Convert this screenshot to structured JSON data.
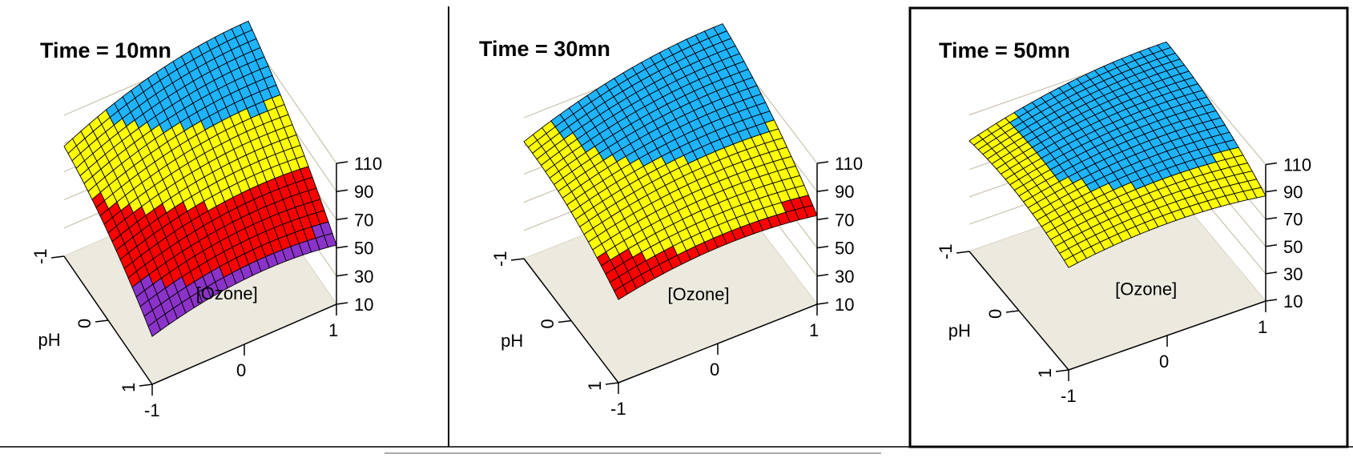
{
  "chart_data": [
    {
      "type": "surface",
      "title": "Time = 10mn",
      "xlabel": "[Ozone]",
      "ylabel": "pH",
      "x_ticks": [
        "-1",
        "0",
        "1"
      ],
      "y_ticks": [
        "-1",
        "0",
        "1"
      ],
      "z_ticks": [
        "10",
        "30",
        "50",
        "70",
        "90",
        "110"
      ],
      "xlim": [
        -1,
        1
      ],
      "ylim": [
        -1,
        1
      ],
      "zlim": [
        10,
        110
      ],
      "surface": {
        "c": 90,
        "a": 10,
        "b": 28,
        "ab": 6,
        "aa": -8,
        "bb": -6
      },
      "contour_levels": [
        40,
        60,
        80,
        100
      ],
      "band_colors": [
        "#ff0000",
        "#8b33c9",
        "#ff0000",
        "#ffff00",
        "#1eb4ff"
      ]
    },
    {
      "type": "surface",
      "title": "Time = 30mn",
      "xlabel": "[Ozone]",
      "ylabel": "pH",
      "x_ticks": [
        "-1",
        "0",
        "1"
      ],
      "y_ticks": [
        "-1",
        "0",
        "1"
      ],
      "z_ticks": [
        "10",
        "30",
        "50",
        "70",
        "90",
        "110"
      ],
      "xlim": [
        -1,
        1
      ],
      "ylim": [
        -1,
        1
      ],
      "zlim": [
        10,
        110
      ],
      "surface": {
        "c": 102,
        "a": 8,
        "b": 18,
        "ab": 6,
        "aa": -7,
        "bb": -6
      },
      "contour_levels": [
        80,
        100
      ],
      "band_colors": [
        "#ff0000",
        "#ffff00",
        "#1eb4ff"
      ]
    },
    {
      "type": "surface",
      "title": "Time = 50mn",
      "xlabel": "[Ozone]",
      "ylabel": "pH",
      "x_ticks": [
        "-1",
        "0",
        "1"
      ],
      "y_ticks": [
        "-1",
        "0",
        "1"
      ],
      "z_ticks": [
        "10",
        "30",
        "50",
        "70",
        "90",
        "110"
      ],
      "xlim": [
        -1,
        1
      ],
      "ylim": [
        -1,
        1
      ],
      "zlim": [
        10,
        110
      ],
      "surface": {
        "c": 106,
        "a": 6,
        "b": 8,
        "ab": 5,
        "aa": -6,
        "bb": -6
      },
      "contour_levels": [
        100
      ],
      "band_colors": [
        "#ffff00",
        "#1eb4ff"
      ]
    }
  ],
  "colors": {
    "floor": "#ece9df",
    "mesh": "#000000",
    "panel_border": "#000000"
  }
}
